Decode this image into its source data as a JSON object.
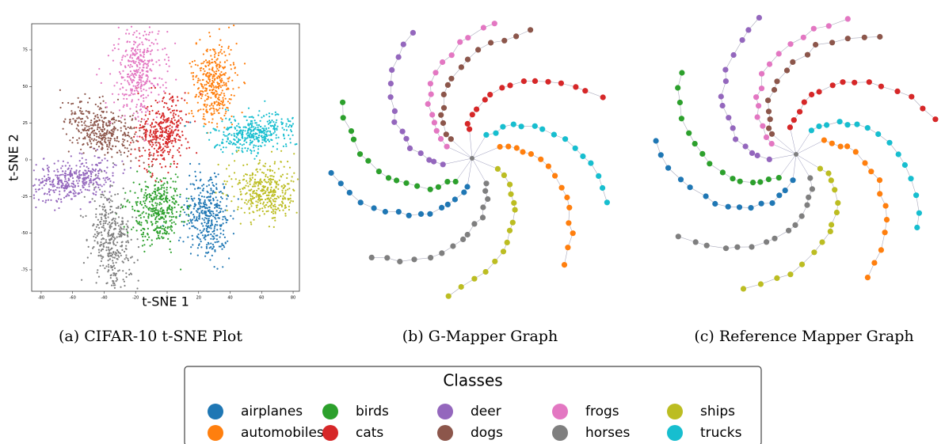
{
  "chart_data": {
    "type": "scatter",
    "x_label": "t-SNE 1",
    "y_label": "t-SNE 2",
    "xlim": [
      -86,
      84
    ],
    "ylim": [
      -89.6,
      92.8
    ],
    "xticks": [
      -80,
      -60,
      -40,
      -20,
      0,
      20,
      40,
      60,
      80
    ],
    "yticks": [
      -75,
      -50,
      -25,
      0,
      25,
      50,
      75
    ]
  },
  "captions": [
    "(a) CIFAR-10 t-SNE Plot",
    "(b) G-Mapper Graph",
    "(c) Reference Mapper Graph"
  ],
  "legend": {
    "title": "Classes",
    "items": [
      {
        "name": "airplanes",
        "color": "#1f77b4"
      },
      {
        "name": "automobiles",
        "color": "#ff7f0e"
      },
      {
        "name": "birds",
        "color": "#2ca02c"
      },
      {
        "name": "cats",
        "color": "#d62728"
      },
      {
        "name": "deer",
        "color": "#9467bd"
      },
      {
        "name": "dogs",
        "color": "#8c564b"
      },
      {
        "name": "frogs",
        "color": "#e377c2"
      },
      {
        "name": "horses",
        "color": "#7f7f7f"
      },
      {
        "name": "ships",
        "color": "#bcbd22"
      },
      {
        "name": "trucks",
        "color": "#17becf"
      }
    ]
  }
}
